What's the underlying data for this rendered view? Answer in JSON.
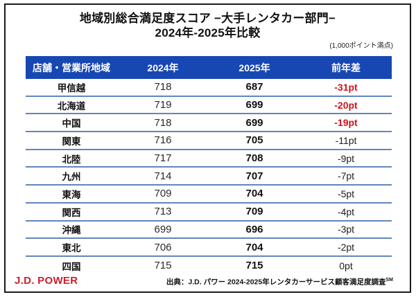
{
  "header": {
    "title_line1": "地域別総合満足度スコア −大手レンタカー部門−",
    "title_line2": "2024年-2025年比較",
    "scale_note": "(1,000ポイント満点)"
  },
  "chart_data": {
    "type": "table",
    "title": "地域別総合満足度スコア −大手レンタカー部門− 2024年-2025年比較",
    "note": "(1,000ポイント満点)",
    "columns": [
      "店舗・営業所地域",
      "2024年",
      "2025年",
      "前年差"
    ],
    "rows": [
      [
        "甲信越",
        718,
        687,
        "-31pt"
      ],
      [
        "北海道",
        719,
        699,
        "-20pt"
      ],
      [
        "中国",
        718,
        699,
        "-19pt"
      ],
      [
        "関東",
        716,
        705,
        "-11pt"
      ],
      [
        "北陸",
        717,
        708,
        "-9pt"
      ],
      [
        "九州",
        714,
        707,
        "-7pt"
      ],
      [
        "東海",
        709,
        704,
        "-5pt"
      ],
      [
        "関西",
        713,
        709,
        "-4pt"
      ],
      [
        "沖縄",
        699,
        696,
        "-3pt"
      ],
      [
        "東北",
        706,
        704,
        "-2pt"
      ],
      [
        "四国",
        715,
        715,
        "0pt"
      ]
    ],
    "highlight_rows": [
      0,
      1,
      2
    ]
  },
  "footer": {
    "logo": "J.D. POWER",
    "source_text": "出典：J.D. パワー 2024-2025年レンタカーサービス顧客満足度調査",
    "source_sup": "SM"
  },
  "colors": {
    "header_bg": "#1747b3",
    "header_text": "#ffffff",
    "row_separator": "#5f86bb",
    "negative_red": "#d01217",
    "logo_red": "#c8202f",
    "border_black": "#1a1a1a"
  }
}
